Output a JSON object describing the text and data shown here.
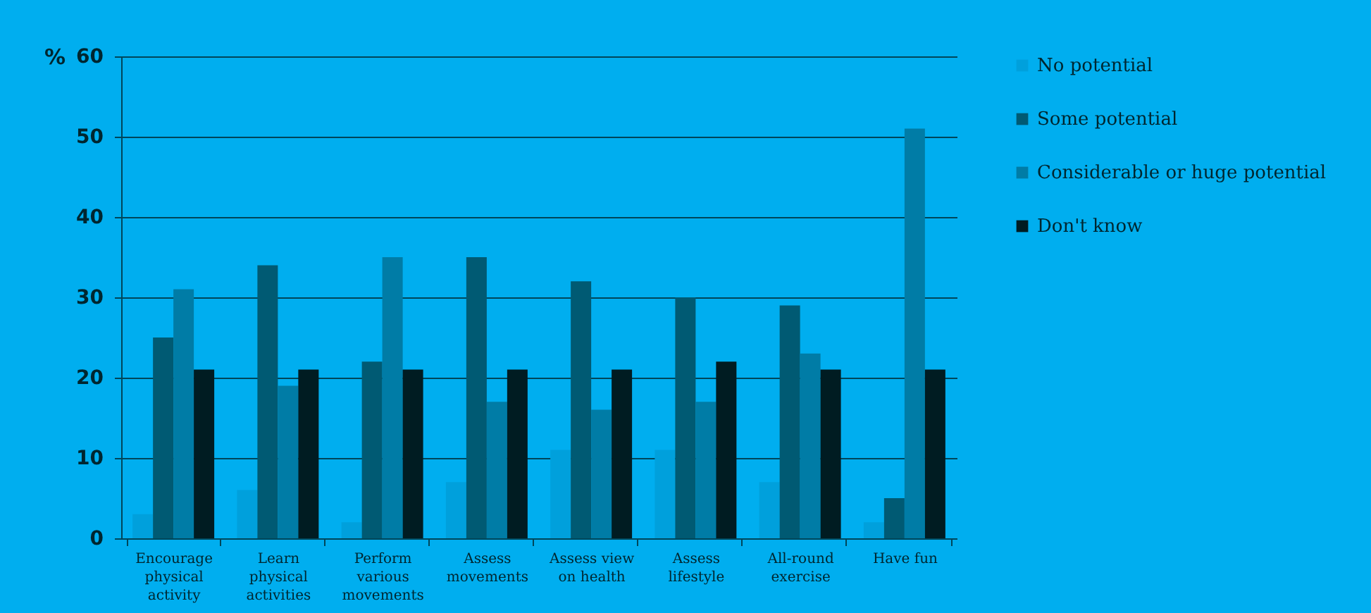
{
  "chart_data": {
    "type": "bar",
    "ylabel": "%",
    "categories": [
      "Encourage physical activity",
      "Learn physical activities",
      "Perform various movements",
      "Assess movements",
      "Assess view on health",
      "Assess lifestyle",
      "All-round exercise",
      "Have fun"
    ],
    "series": [
      {
        "name": "No potential",
        "color": "#00a0dc",
        "values": [
          3,
          6,
          2,
          7,
          11,
          11,
          7,
          2
        ]
      },
      {
        "name": "Some potential",
        "color": "#005a73",
        "values": [
          25,
          34,
          22,
          35,
          32,
          30,
          29,
          5
        ]
      },
      {
        "name": "Considerable or huge potential",
        "color": "#007ca6",
        "values": [
          31,
          19,
          35,
          17,
          16,
          17,
          23,
          51
        ]
      },
      {
        "name": "Don't know",
        "color": "#001c22",
        "values": [
          21,
          21,
          21,
          21,
          21,
          22,
          21,
          21
        ]
      }
    ],
    "ylim": [
      0,
      60
    ],
    "yticks": [
      0,
      10,
      20,
      30,
      40,
      50,
      60
    ],
    "grid": "y",
    "legend": "right"
  }
}
